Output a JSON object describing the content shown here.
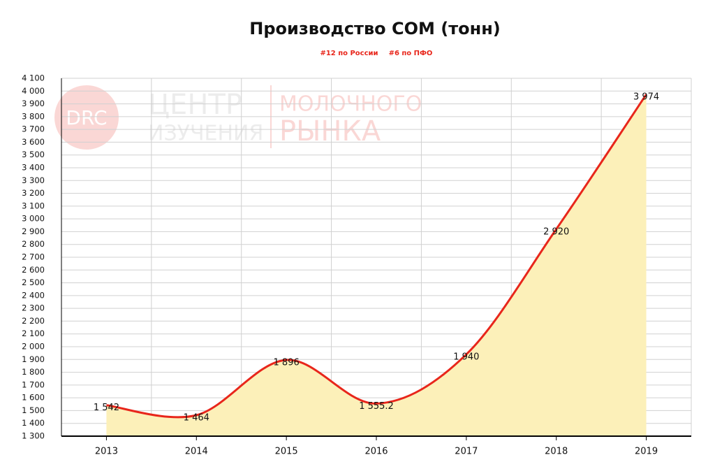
{
  "chart_data": {
    "type": "area-line",
    "title": "Производство СОМ (тонн)",
    "subtitle": [
      "#12 по России",
      "#6 по ПФО"
    ],
    "watermark": [
      "DRC",
      "ЦЕНТР",
      "ИЗУЧЕНИЯ",
      "МОЛОЧНОГО",
      "РЫНКА"
    ],
    "categories": [
      "2013",
      "2014",
      "2015",
      "2016",
      "2017",
      "2018",
      "2019"
    ],
    "series": [
      {
        "color": "#e8261b",
        "fill": "#fcf0b9",
        "values": [
          1542,
          1464,
          1896,
          1555.2,
          1940,
          2920,
          3974
        ],
        "value_labels": [
          "1 542",
          "1 464",
          "1 896",
          "1 555.2",
          "1 940",
          "2 920",
          "3 974"
        ]
      }
    ],
    "ylim": [
      1300,
      4100
    ],
    "yticks": [
      {
        "value": 1300,
        "label": "1 300"
      },
      {
        "value": 1400,
        "label": "1 400"
      },
      {
        "value": 1500,
        "label": "1 500"
      },
      {
        "value": 1600,
        "label": "1 600"
      },
      {
        "value": 1700,
        "label": "1 700"
      },
      {
        "value": 1800,
        "label": "1 800"
      },
      {
        "value": 1900,
        "label": "1 900"
      },
      {
        "value": 2000,
        "label": "2 000"
      },
      {
        "value": 2100,
        "label": "2 100"
      },
      {
        "value": 2200,
        "label": "2 200"
      },
      {
        "value": 2300,
        "label": "2 300"
      },
      {
        "value": 2400,
        "label": "2 400"
      },
      {
        "value": 2500,
        "label": "2 500"
      },
      {
        "value": 2600,
        "label": "2 600"
      },
      {
        "value": 2700,
        "label": "2 700"
      },
      {
        "value": 2800,
        "label": "2 800"
      },
      {
        "value": 2900,
        "label": "2 900"
      },
      {
        "value": 3000,
        "label": "3 000"
      },
      {
        "value": 3100,
        "label": "3 100"
      },
      {
        "value": 3200,
        "label": "3 200"
      },
      {
        "value": 3300,
        "label": "3 300"
      },
      {
        "value": 3400,
        "label": "3 400"
      },
      {
        "value": 3500,
        "label": "3 500"
      },
      {
        "value": 3600,
        "label": "3 600"
      },
      {
        "value": 3700,
        "label": "3 700"
      },
      {
        "value": 3800,
        "label": "3 800"
      },
      {
        "value": 3900,
        "label": "3 900"
      },
      {
        "value": 4000,
        "label": "4 000"
      },
      {
        "value": 4100,
        "label": "4 100"
      }
    ],
    "grid": true
  }
}
